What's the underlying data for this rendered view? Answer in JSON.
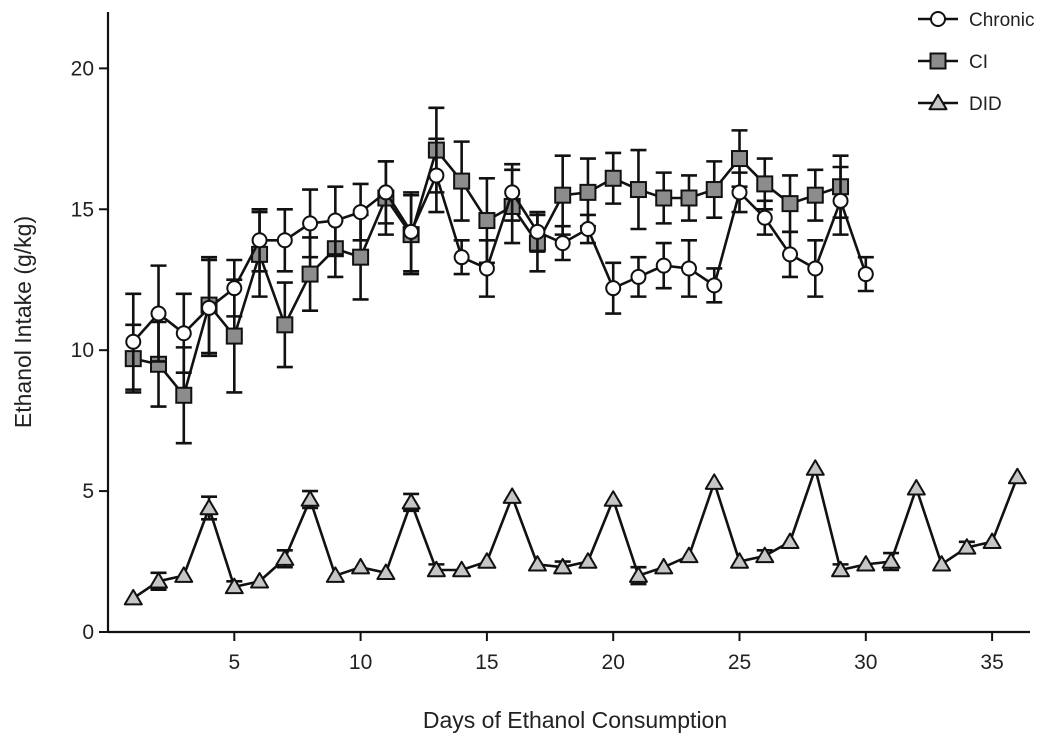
{
  "chart_data": {
    "type": "line",
    "xlabel": "Days of Ethanol Consumption",
    "ylabel": "Ethanol Intake (g/kg)",
    "xlim": [
      0,
      36.5
    ],
    "ylim": [
      0,
      22
    ],
    "x_ticks": [
      5,
      10,
      15,
      20,
      25,
      30,
      35
    ],
    "y_ticks": [
      0,
      5,
      10,
      15,
      20
    ],
    "legend_position": "top-right",
    "series": [
      {
        "name": "Chronic",
        "marker": "circle",
        "fill": "#ffffff",
        "x": [
          1,
          2,
          3,
          4,
          5,
          6,
          7,
          8,
          9,
          10,
          11,
          12,
          13,
          14,
          15,
          16,
          17,
          18,
          19,
          20,
          21,
          22,
          23,
          24,
          25,
          26,
          27,
          28,
          29,
          30
        ],
        "values": [
          10.3,
          11.3,
          10.6,
          11.5,
          12.2,
          13.9,
          13.9,
          14.5,
          14.6,
          14.9,
          15.6,
          14.2,
          16.2,
          13.3,
          12.9,
          15.6,
          14.2,
          13.8,
          14.3,
          12.2,
          12.6,
          13.0,
          12.9,
          12.3,
          15.6,
          14.7,
          13.4,
          12.9,
          15.3,
          12.7
        ],
        "errors": [
          1.7,
          1.7,
          1.4,
          1.7,
          1.0,
          1.1,
          1.1,
          1.2,
          1.2,
          1.0,
          1.1,
          1.4,
          1.3,
          0.6,
          1.0,
          1.0,
          0.7,
          0.6,
          0.5,
          0.9,
          0.7,
          0.8,
          1.0,
          0.6,
          0.7,
          0.6,
          0.8,
          1.0,
          1.2,
          0.6
        ]
      },
      {
        "name": "CI",
        "marker": "square",
        "fill": "#8c8c8c",
        "x": [
          1,
          2,
          3,
          4,
          5,
          6,
          7,
          8,
          9,
          10,
          11,
          12,
          13,
          14,
          15,
          16,
          17,
          18,
          19,
          20,
          21,
          22,
          23,
          24,
          25,
          26,
          27,
          28,
          29
        ],
        "values": [
          9.7,
          9.5,
          8.4,
          11.6,
          10.5,
          13.4,
          10.9,
          12.7,
          13.6,
          13.3,
          15.4,
          14.1,
          17.1,
          16.0,
          14.6,
          15.1,
          13.8,
          15.5,
          15.6,
          16.1,
          15.7,
          15.4,
          15.4,
          15.7,
          16.8,
          15.9,
          15.2,
          15.5,
          15.8
        ],
        "errors": [
          1.2,
          1.5,
          1.7,
          1.7,
          2.0,
          1.5,
          1.5,
          1.3,
          1.0,
          1.5,
          1.3,
          1.4,
          1.5,
          1.4,
          1.5,
          1.3,
          1.0,
          1.4,
          1.2,
          0.9,
          1.4,
          0.9,
          0.8,
          1.0,
          1.0,
          0.9,
          1.0,
          0.9,
          1.1
        ]
      },
      {
        "name": "DID",
        "marker": "triangle",
        "fill": "#c6c6c6",
        "x": [
          1,
          2,
          3,
          4,
          5,
          6,
          7,
          8,
          9,
          10,
          11,
          12,
          13,
          14,
          15,
          16,
          17,
          18,
          19,
          20,
          21,
          22,
          23,
          24,
          25,
          26,
          27,
          28,
          29,
          30,
          31,
          32,
          33,
          34,
          35,
          36
        ],
        "values": [
          1.2,
          1.8,
          2.0,
          4.4,
          1.6,
          1.8,
          2.6,
          4.7,
          2.0,
          2.3,
          2.1,
          4.6,
          2.2,
          2.2,
          2.5,
          4.8,
          2.4,
          2.3,
          2.5,
          4.7,
          2.0,
          2.3,
          2.7,
          5.3,
          2.5,
          2.7,
          3.2,
          5.8,
          2.2,
          2.4,
          2.5,
          5.1,
          2.4,
          3.0,
          3.2,
          5.5
        ],
        "errors": [
          0.0,
          0.3,
          0.0,
          0.4,
          0.2,
          0.0,
          0.3,
          0.3,
          0.0,
          0.0,
          0.0,
          0.3,
          0.2,
          0.0,
          0.0,
          0.0,
          0.0,
          0.2,
          0.0,
          0.0,
          0.3,
          0.0,
          0.0,
          0.0,
          0.0,
          0.2,
          0.0,
          0.0,
          0.2,
          0.0,
          0.3,
          0.0,
          0.0,
          0.2,
          0.0,
          0.0
        ]
      }
    ]
  }
}
